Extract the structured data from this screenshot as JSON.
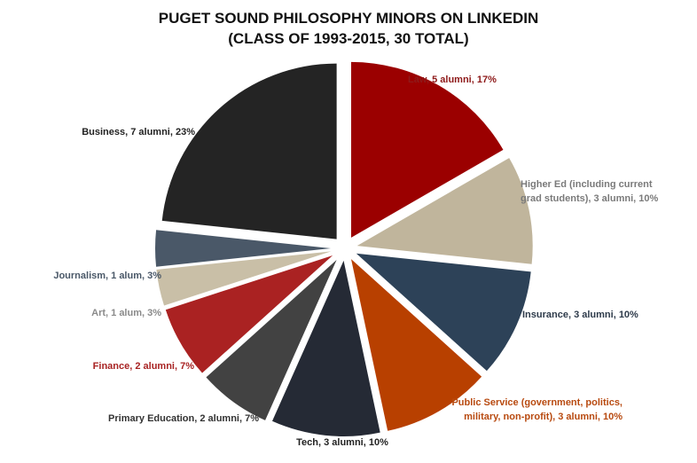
{
  "chart_data": {
    "type": "pie",
    "title": "PUGET SOUND PHILOSOPHY MINORS ON LINKEDIN",
    "subtitle": "(CLASS OF 1993-2015, 30 TOTAL)",
    "total": 30,
    "slices": [
      {
        "category": "Law",
        "value": 5,
        "percent": 17,
        "color": "#9b0000",
        "label_color": "#8e1a1a",
        "label_lines": [
          "Law, 5 alumni, 17%"
        ]
      },
      {
        "category": "Higher Ed (including current grad students)",
        "value": 3,
        "percent": 10,
        "color": "#c0b59c",
        "label_color": "#7a7a7a",
        "label_lines": [
          "Higher Ed (including current",
          "grad students), 3 alumni, 10%"
        ]
      },
      {
        "category": "Insurance",
        "value": 3,
        "percent": 10,
        "color": "#2d4258",
        "label_color": "#2d3a4a",
        "label_lines": [
          "Insurance, 3 alumni, 10%"
        ]
      },
      {
        "category": "Public Service (government, politics, military, non-profit)",
        "value": 3,
        "percent": 10,
        "color": "#b84000",
        "label_color": "#b84a10",
        "label_lines": [
          "Public Service (government, politics,",
          "military, non-profit), 3 alumni, 10%"
        ]
      },
      {
        "category": "Tech",
        "value": 3,
        "percent": 10,
        "color": "#252a35",
        "label_color": "#222222",
        "label_lines": [
          "Tech, 3 alumni, 10%"
        ]
      },
      {
        "category": "Primary Education",
        "value": 2,
        "percent": 7,
        "color": "#424242",
        "label_color": "#333333",
        "label_lines": [
          "Primary Education, 2 alumni, 7%"
        ]
      },
      {
        "category": "Finance",
        "value": 2,
        "percent": 7,
        "color": "#aa2222",
        "label_color": "#a82323",
        "label_lines": [
          "Finance, 2 alumni, 7%"
        ]
      },
      {
        "category": "Art",
        "value": 1,
        "percent": 3,
        "color": "#c9bfa7",
        "label_color": "#8a8a8a",
        "label_lines": [
          "Art, 1 alum, 3%"
        ]
      },
      {
        "category": "Journalism",
        "value": 1,
        "percent": 3,
        "color": "#4a5868",
        "label_color": "#4a5868",
        "label_lines": [
          "Journalism, 1 alum, 3%"
        ]
      },
      {
        "category": "Business",
        "value": 7,
        "percent": 23,
        "color": "#242424",
        "label_color": "#222222",
        "label_lines": [
          "Business, 7 alumni, 23%"
        ]
      }
    ]
  }
}
